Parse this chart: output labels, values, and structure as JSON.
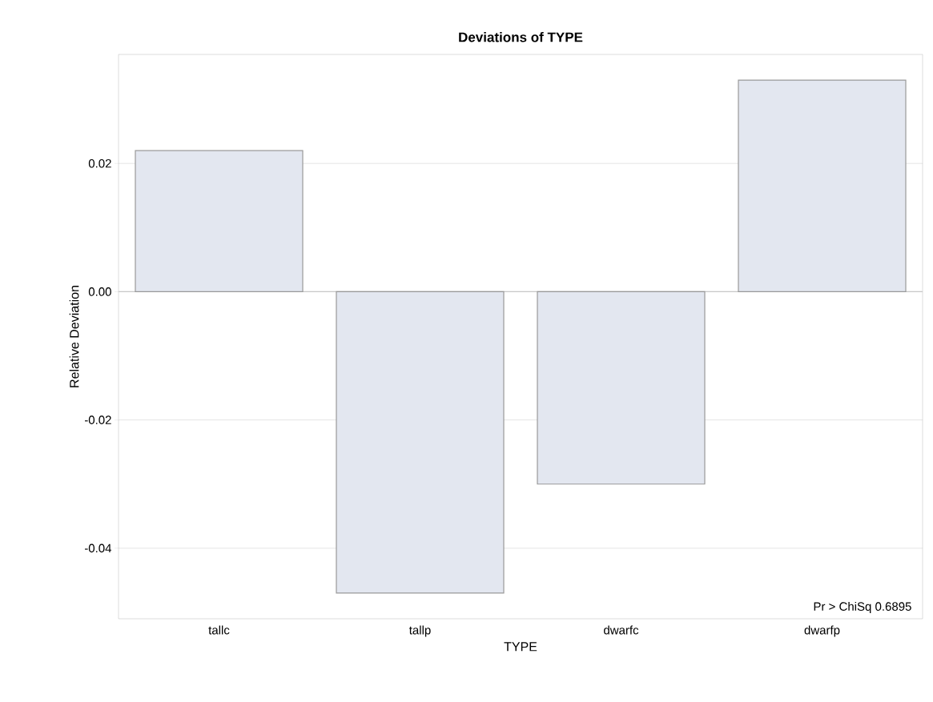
{
  "chart_data": {
    "type": "bar",
    "title": "Deviations of TYPE",
    "xlabel": "TYPE",
    "ylabel": "Relative Deviation",
    "categories": [
      "tallc",
      "tallp",
      "dwarfc",
      "dwarfp"
    ],
    "values": [
      0.022,
      -0.047,
      -0.03,
      0.033
    ],
    "color": "#e3e7f0",
    "ylim": [
      -0.051,
      0.037
    ],
    "yticks": [
      {
        "value": -0.04,
        "label": "-0.04"
      },
      {
        "value": -0.02,
        "label": "-0.02"
      },
      {
        "value": 0,
        "label": "0.00"
      },
      {
        "value": 0.02,
        "label": "0.02"
      }
    ],
    "grid": "y",
    "ref_lines": [
      {
        "axis": "y",
        "value": 0,
        "color": "#c8c8c8"
      }
    ],
    "annotations": [
      "Pr > ChiSq   0.6895"
    ]
  }
}
